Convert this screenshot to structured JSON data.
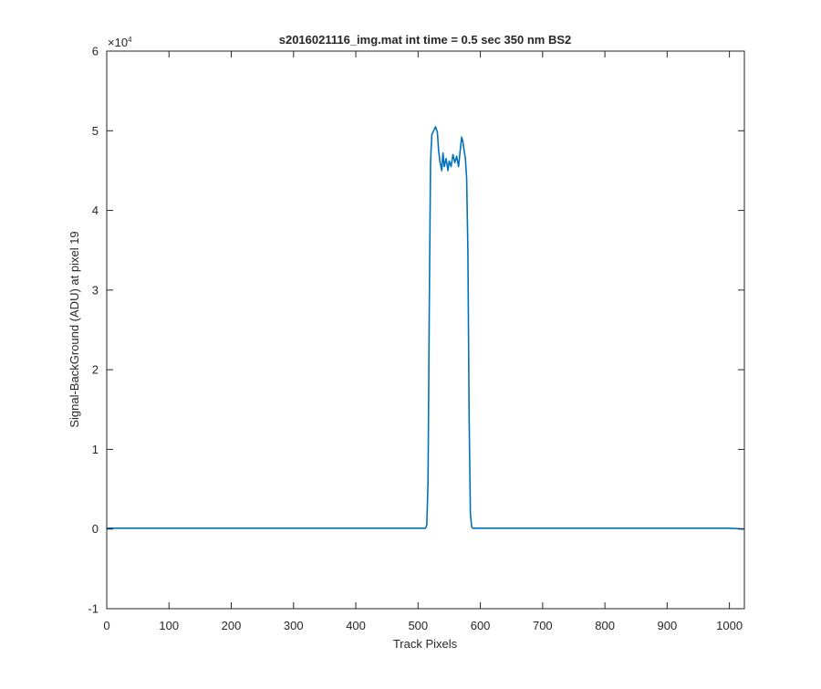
{
  "chart_data": {
    "type": "line",
    "title": "s2016021116_img.mat int time = 0.5 sec  350 nm BS2",
    "xlabel": "Track Pixels",
    "ylabel": "Signal-BackGround (ADU) at pixel 19",
    "y_exponent_label": "×10",
    "y_exponent_power": "4",
    "y_multiplier": 10000,
    "xlim": [
      0,
      1024
    ],
    "ylim": [
      -1,
      6
    ],
    "x_ticks": [
      0,
      100,
      200,
      300,
      400,
      500,
      600,
      700,
      800,
      900,
      1000
    ],
    "x_tick_labels": [
      "0",
      "100",
      "200",
      "300",
      "400",
      "500",
      "600",
      "700",
      "800",
      "900",
      "1000"
    ],
    "y_ticks": [
      -1,
      0,
      1,
      2,
      3,
      4,
      5,
      6
    ],
    "y_tick_labels": [
      "-1",
      "0",
      "1",
      "2",
      "3",
      "4",
      "5",
      "6"
    ],
    "grid": false,
    "line_color": "#0072bd",
    "series": [
      {
        "x": [
          0,
          100,
          200,
          300,
          400,
          500,
          512,
          514,
          516,
          518,
          520,
          522,
          525,
          528,
          531,
          533,
          535,
          538,
          540,
          542,
          545,
          548,
          550,
          553,
          556,
          559,
          562,
          565,
          568,
          570,
          572,
          574,
          576,
          578,
          580,
          582,
          584,
          586,
          588,
          600,
          700,
          800,
          900,
          1000,
          1024
        ],
        "y": [
          0.01,
          0.01,
          0.01,
          0.01,
          0.01,
          0.01,
          0.01,
          0.05,
          0.6,
          2.8,
          4.6,
          4.95,
          5.0,
          5.05,
          4.98,
          4.75,
          4.62,
          4.5,
          4.72,
          4.55,
          4.65,
          4.5,
          4.62,
          4.55,
          4.7,
          4.6,
          4.68,
          4.55,
          4.78,
          4.92,
          4.86,
          4.75,
          4.65,
          4.4,
          3.5,
          1.4,
          0.2,
          0.03,
          0.01,
          0.01,
          0.01,
          0.01,
          0.01,
          0.01,
          0.0
        ]
      }
    ]
  }
}
